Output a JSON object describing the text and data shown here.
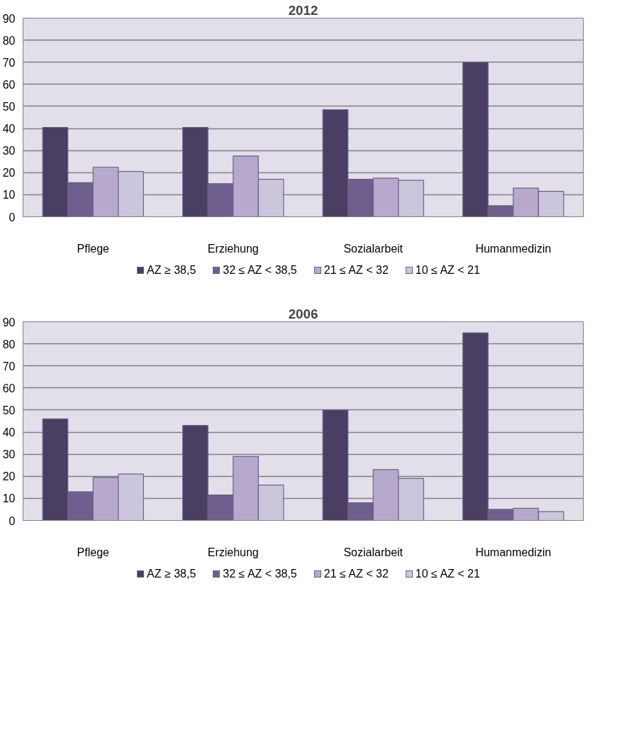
{
  "chart_data": [
    {
      "type": "bar",
      "title": "2012",
      "categories": [
        "Pflege",
        "Erziehung",
        "Sozialarbeit",
        "Humanmedizin"
      ],
      "ylim": [
        0,
        90
      ],
      "yticks": [
        0,
        10,
        20,
        30,
        40,
        50,
        60,
        70,
        80,
        90
      ],
      "grid": "y",
      "legend": "bottom",
      "series": [
        {
          "name": "AZ ≥ 38,5",
          "color": "#4a3f63",
          "values": [
            40.5,
            40.5,
            48.5,
            70
          ]
        },
        {
          "name": "32 ≤ AZ < 38,5",
          "color": "#6e5f8e",
          "values": [
            15.5,
            15,
            17,
            5
          ]
        },
        {
          "name": "21 ≤ AZ < 32",
          "color": "#b6a9cb",
          "values": [
            22.5,
            27.5,
            17.5,
            13
          ]
        },
        {
          "name": "10 ≤ AZ < 21",
          "color": "#cbc6dc",
          "values": [
            20.5,
            17,
            16.5,
            11.5
          ]
        }
      ]
    },
    {
      "type": "bar",
      "title": "2006",
      "categories": [
        "Pflege",
        "Erziehung",
        "Sozialarbeit",
        "Humanmedizin"
      ],
      "ylim": [
        0,
        90
      ],
      "yticks": [
        0,
        10,
        20,
        30,
        40,
        50,
        60,
        70,
        80,
        90
      ],
      "grid": "y",
      "legend": "bottom",
      "series": [
        {
          "name": "AZ ≥ 38,5",
          "color": "#4a3f63",
          "values": [
            46,
            43,
            50,
            85
          ]
        },
        {
          "name": "32 ≤ AZ < 38,5",
          "color": "#6e5f8e",
          "values": [
            13,
            11.5,
            8,
            5
          ]
        },
        {
          "name": "21 ≤ AZ < 32",
          "color": "#b6a9cb",
          "values": [
            19.5,
            29,
            23,
            5.5
          ]
        },
        {
          "name": "10 ≤ AZ < 21",
          "color": "#cbc6dc",
          "values": [
            21,
            16,
            19,
            4
          ]
        }
      ]
    }
  ]
}
